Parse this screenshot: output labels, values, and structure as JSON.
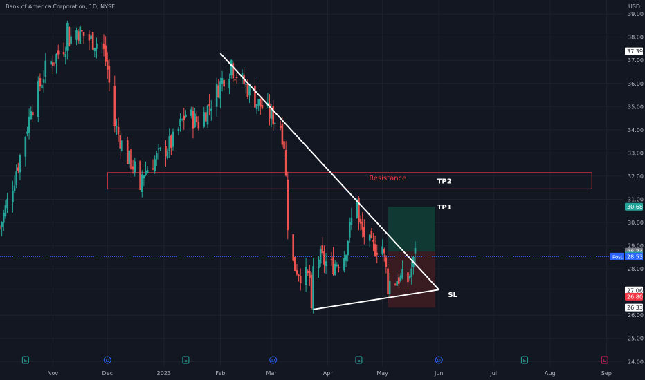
{
  "header": {
    "title": "Bank of America Corporation, 1D, NYSE",
    "currency": "USD"
  },
  "colors": {
    "background": "#131722",
    "grid": "#1e222d",
    "up": "#26a69a",
    "down": "#ef5350",
    "axis_text": "#b2b5be",
    "line": "#ffffff",
    "resistance": "#f23645",
    "target_zone": "#0f3b34",
    "stop_zone": "#3b1c23",
    "post_badge": "#2962ff"
  },
  "chart_data": {
    "type": "candlestick",
    "y_axis": {
      "range": [
        23.8,
        39.6
      ],
      "ticks": [
        "24.00",
        "25.00",
        "26.00",
        "27.00",
        "28.00",
        "29.00",
        "30.00",
        "31.00",
        "32.00",
        "33.00",
        "34.00",
        "35.00",
        "36.00",
        "37.00",
        "38.00",
        "39.00"
      ]
    },
    "x_axis": {
      "start_date": "2022-10-03",
      "end_date": "2023-09-10",
      "ticks": [
        {
          "date": "2022-11-01",
          "label": "Nov"
        },
        {
          "date": "2022-12-01",
          "label": "Dec"
        },
        {
          "date": "2023-01-01",
          "label": "2023"
        },
        {
          "date": "2023-02-01",
          "label": "Feb"
        },
        {
          "date": "2023-03-01",
          "label": "Mar"
        },
        {
          "date": "2023-04-01",
          "label": "Apr"
        },
        {
          "date": "2023-05-01",
          "label": "May"
        },
        {
          "date": "2023-06-01",
          "label": "Jun"
        },
        {
          "date": "2023-07-01",
          "label": "Jul"
        },
        {
          "date": "2023-08-01",
          "label": "Aug"
        },
        {
          "date": "2023-09-01",
          "label": "Sep"
        }
      ]
    },
    "price_path": [
      {
        "date": "2022-10-03",
        "close": 29.8
      },
      {
        "date": "2022-10-12",
        "close": 32.2
      },
      {
        "date": "2022-10-20",
        "close": 34.8
      },
      {
        "date": "2022-10-28",
        "close": 36.6
      },
      {
        "date": "2022-11-07",
        "close": 37.6
      },
      {
        "date": "2022-11-14",
        "close": 38.3
      },
      {
        "date": "2022-11-21",
        "close": 37.9
      },
      {
        "date": "2022-11-28",
        "close": 37.7
      },
      {
        "date": "2022-12-01",
        "close": 36.6
      },
      {
        "date": "2022-12-05",
        "close": 34.2
      },
      {
        "date": "2022-12-12",
        "close": 32.8
      },
      {
        "date": "2022-12-19",
        "close": 32.0
      },
      {
        "date": "2022-12-27",
        "close": 32.7
      },
      {
        "date": "2023-01-06",
        "close": 33.5
      },
      {
        "date": "2023-01-13",
        "close": 34.7
      },
      {
        "date": "2023-01-20",
        "close": 34.3
      },
      {
        "date": "2023-01-27",
        "close": 35.2
      },
      {
        "date": "2023-02-03",
        "close": 36.3
      },
      {
        "date": "2023-02-07",
        "close": 36.7
      },
      {
        "date": "2023-02-14",
        "close": 36.0
      },
      {
        "date": "2023-02-21",
        "close": 35.2
      },
      {
        "date": "2023-03-01",
        "close": 34.6
      },
      {
        "date": "2023-03-06",
        "close": 34.2
      },
      {
        "date": "2023-03-08",
        "close": 33.4
      },
      {
        "date": "2023-03-09",
        "close": 31.9
      },
      {
        "date": "2023-03-10",
        "close": 30.0
      },
      {
        "date": "2023-03-13",
        "close": 28.2
      },
      {
        "date": "2023-03-17",
        "close": 27.8
      },
      {
        "date": "2023-03-22",
        "close": 27.6
      },
      {
        "date": "2023-03-27",
        "close": 28.5
      },
      {
        "date": "2023-04-03",
        "close": 28.1
      },
      {
        "date": "2023-04-10",
        "close": 28.6
      },
      {
        "date": "2023-04-14",
        "close": 30.1
      },
      {
        "date": "2023-04-18",
        "close": 29.9
      },
      {
        "date": "2023-04-25",
        "close": 28.9
      },
      {
        "date": "2023-05-01",
        "close": 29.0
      },
      {
        "date": "2023-05-04",
        "close": 27.4
      },
      {
        "date": "2023-05-10",
        "close": 27.6
      },
      {
        "date": "2023-05-15",
        "close": 27.5
      },
      {
        "date": "2023-05-19",
        "close": 28.5
      }
    ],
    "anchors": [
      {
        "date": "2022-10-03",
        "price": 29.8
      },
      {
        "date": "2022-10-12",
        "price": 32.2
      },
      {
        "date": "2022-10-20",
        "price": 34.8
      },
      {
        "date": "2022-11-09",
        "price": 38.6
      },
      {
        "date": "2022-12-19",
        "price": 31.4
      },
      {
        "date": "2023-02-07",
        "price": 37.0
      },
      {
        "date": "2023-03-23",
        "price": 26.3
      },
      {
        "date": "2023-04-17",
        "price": 31.0
      },
      {
        "date": "2023-05-04",
        "price": 26.9
      },
      {
        "date": "2023-05-19",
        "price": 28.9
      }
    ],
    "trendlines": [
      {
        "name": "descending-line",
        "from": {
          "date": "2023-02-01",
          "price": 37.3
        },
        "to": {
          "date": "2023-06-01",
          "price": 27.1
        }
      },
      {
        "name": "ascending-line",
        "from": {
          "date": "2023-03-24",
          "price": 26.25
        },
        "to": {
          "date": "2023-06-01",
          "price": 27.1
        }
      }
    ],
    "resistance": {
      "label": "Resistance",
      "from_date": "2022-12-01",
      "to_date": "2023-08-24",
      "top": 32.15,
      "bottom": 31.45
    },
    "target_zone": {
      "from_date": "2023-05-04",
      "to_date": "2023-05-30",
      "top": 30.68,
      "bottom": 28.74
    },
    "stop_zone": {
      "from_date": "2023-05-04",
      "to_date": "2023-05-30",
      "top": 28.74,
      "bottom": 26.33
    },
    "annotations": [
      {
        "label": "TP2",
        "date": "2023-05-31",
        "price": 31.8
      },
      {
        "label": "TP1",
        "date": "2023-05-31",
        "price": 30.68
      },
      {
        "label": "SL",
        "date": "2023-06-06",
        "price": 26.9
      }
    ],
    "post_price_line": 28.53,
    "price_labels": [
      {
        "value": "37.39",
        "price": 37.39,
        "kind": "plain"
      },
      {
        "value": "30.68",
        "price": 30.68,
        "kind": "green"
      },
      {
        "value": "28.74",
        "price": 28.74,
        "kind": "grey"
      },
      {
        "value": "28.57",
        "price": 28.57,
        "kind": "green"
      },
      {
        "value": "28.53",
        "price": 28.53,
        "kind": "blue"
      },
      {
        "value": "27.07",
        "price": 27.07,
        "kind": "plain"
      },
      {
        "value": "27.06",
        "price": 27.06,
        "kind": "plain"
      },
      {
        "value": "26.80",
        "price": 26.8,
        "kind": "red"
      },
      {
        "value": "26.33",
        "price": 26.33,
        "kind": "plain"
      }
    ],
    "post_label": "Post",
    "events": [
      {
        "date": "2022-10-17",
        "letter": "E",
        "kind": "earnings"
      },
      {
        "date": "2022-12-01",
        "letter": "D",
        "kind": "dividend"
      },
      {
        "date": "2023-01-13",
        "letter": "E",
        "kind": "earnings"
      },
      {
        "date": "2023-03-02",
        "letter": "D",
        "kind": "dividend"
      },
      {
        "date": "2023-04-18",
        "letter": "E",
        "kind": "earnings"
      },
      {
        "date": "2023-06-01",
        "letter": "D",
        "kind": "dividend"
      },
      {
        "date": "2023-07-18",
        "letter": "E",
        "kind": "earnings"
      },
      {
        "date": "2023-08-31",
        "letter": "L",
        "kind": "other"
      }
    ]
  }
}
